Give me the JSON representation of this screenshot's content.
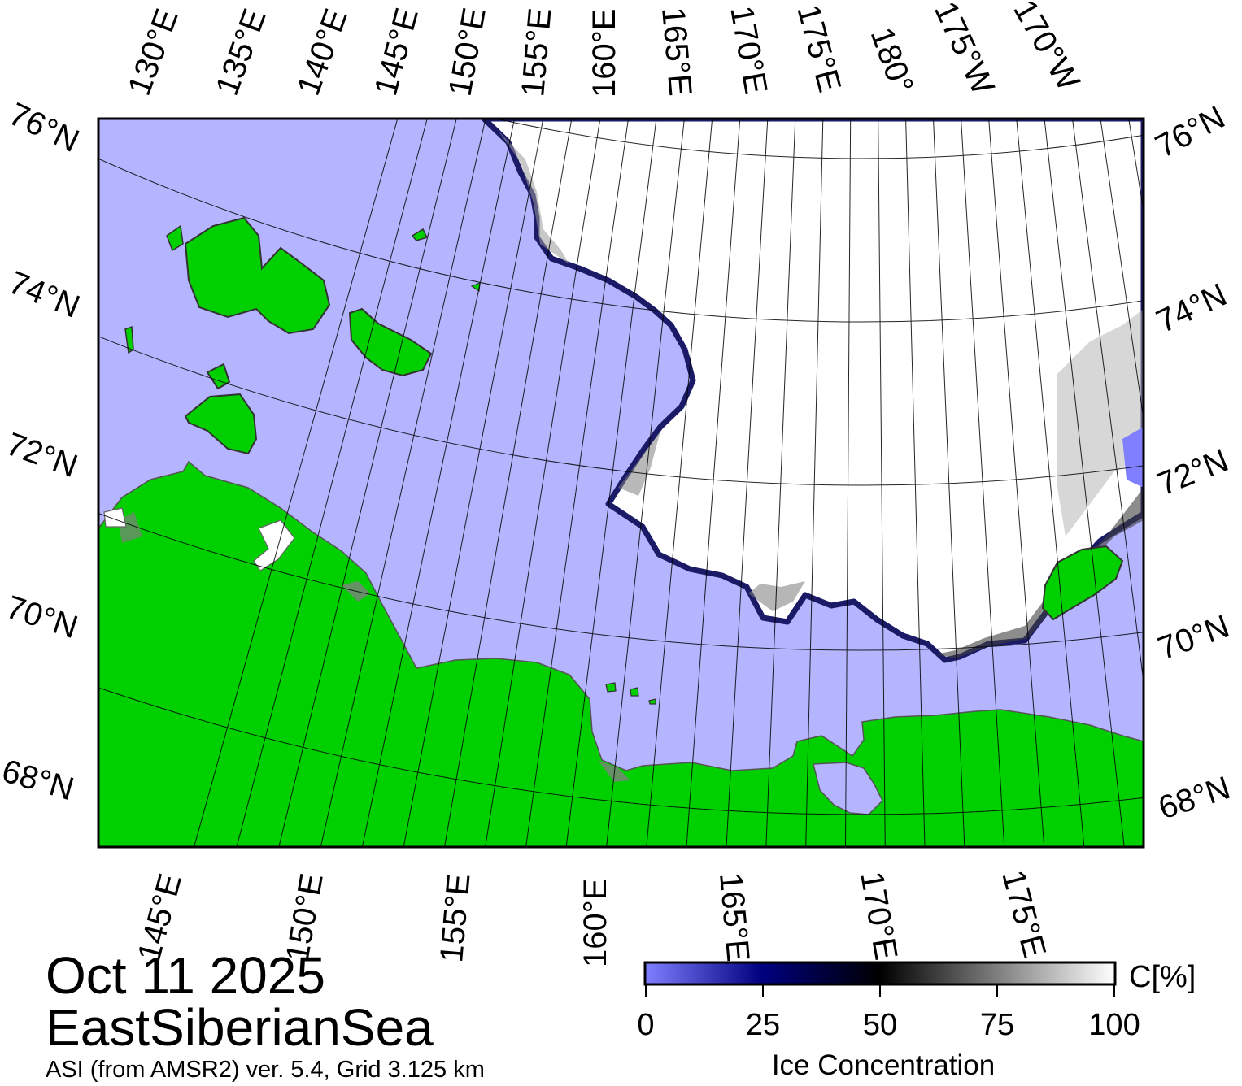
{
  "date": "Oct 11 2025",
  "region": "EastSiberianSea",
  "source": "ASI (from AMSR2) ver. 5.4,  Grid 3.125 km",
  "colors": {
    "water": "#b4b4ff",
    "land": "#00d000",
    "coast_gray": "#808080",
    "ice_high": "#ffffff"
  },
  "top_lon_labels": [
    "130°E",
    "135°E",
    "140°E",
    "145°E",
    "150°E",
    "155°E",
    "160°E",
    "165°E",
    "170°E",
    "175°E",
    "180°",
    "175°W",
    "170°W"
  ],
  "bottom_lon_labels": [
    "145°E",
    "150°E",
    "155°E",
    "160°E",
    "165°E",
    "170°E",
    "175°E"
  ],
  "left_lat_labels": [
    "76°N",
    "74°N",
    "72°N",
    "70°N",
    "68°N"
  ],
  "right_lat_labels": [
    "76°N",
    "74°N",
    "72°N",
    "70°N",
    "68°N"
  ],
  "colorbar": {
    "title": "Ice Concentration",
    "unit": "C[%]",
    "ticks": [
      "0",
      "25",
      "50",
      "75",
      "100"
    ],
    "stops": [
      {
        "value": 0,
        "color": "#7f7fff"
      },
      {
        "value": 25,
        "color": "#00007f"
      },
      {
        "value": 50,
        "color": "#000000"
      },
      {
        "value": 75,
        "color": "#7f7f7f"
      },
      {
        "value": 100,
        "color": "#ffffff"
      }
    ]
  }
}
